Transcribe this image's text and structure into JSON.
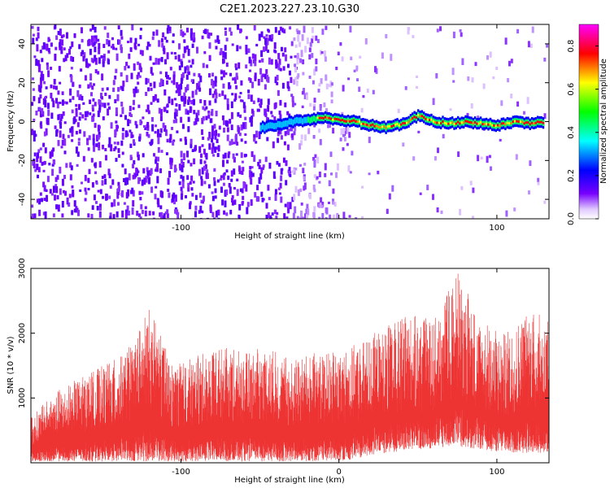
{
  "title": "C2E1.2023.227.23.10.G30",
  "chart_data": [
    {
      "type": "heatmap",
      "xlabel": "Height of straight line (km)",
      "ylabel": "Frequency (Hz)",
      "xlim": [
        -195,
        133
      ],
      "ylim": [
        -50,
        50
      ],
      "xticks": [
        -100,
        0,
        100
      ],
      "xtick_labels": [
        "-100",
        "",
        "100"
      ],
      "yticks": [
        -40,
        -20,
        0,
        20,
        40
      ],
      "ytick_labels": [
        "-40",
        "-20",
        "0",
        "20",
        "40"
      ],
      "grid": false,
      "colorbar": {
        "label": "Normalized spectral amplitude",
        "range": [
          0,
          0.9
        ],
        "ticks": [
          0.0,
          0.2,
          0.4,
          0.6,
          0.8
        ],
        "tick_labels": [
          "0.0",
          "0.2",
          "0.4",
          "0.6",
          "0.8"
        ],
        "colormap": [
          "#ffffff",
          "#7700ff",
          "#0000ff",
          "#00ffff",
          "#00ff00",
          "#ffff00",
          "#ff0000",
          "#ff00ff"
        ]
      },
      "ridge": {
        "description_free": true,
        "x": [
          -50,
          -40,
          -30,
          -20,
          -10,
          0,
          10,
          20,
          30,
          40,
          50,
          60,
          70,
          80,
          90,
          100,
          110,
          120,
          130
        ],
        "y": [
          -3,
          -2,
          0,
          1,
          2,
          1,
          0,
          -2,
          -3,
          -1,
          3,
          0,
          -1,
          0,
          -1,
          -2,
          0,
          -1,
          0
        ]
      }
    },
    {
      "type": "area",
      "xlabel": "Height of straight line (km)",
      "ylabel": "SNR (10 * v/v)",
      "xlim": [
        -195,
        133
      ],
      "ylim": [
        0,
        3000
      ],
      "xticks": [
        -100,
        0,
        100
      ],
      "xtick_labels": [
        "-100",
        "0",
        "100"
      ],
      "yticks": [
        1000,
        2000,
        3000
      ],
      "ytick_labels": [
        "1000",
        "2000",
        "3000"
      ],
      "grid": false,
      "color": "#ee3333",
      "x": [
        -195,
        -180,
        -165,
        -150,
        -135,
        -120,
        -105,
        -90,
        -75,
        -60,
        -45,
        -30,
        -15,
        0,
        15,
        30,
        45,
        60,
        75,
        90,
        105,
        120,
        133
      ],
      "y_low": [
        20,
        20,
        20,
        20,
        20,
        20,
        20,
        20,
        20,
        20,
        20,
        20,
        20,
        20,
        80,
        150,
        200,
        220,
        250,
        200,
        150,
        150,
        150
      ],
      "y_high": [
        700,
        1100,
        1300,
        1500,
        1700,
        2400,
        1500,
        1650,
        1800,
        1700,
        1800,
        1600,
        1700,
        1700,
        1900,
        2100,
        2300,
        2200,
        3000,
        2200,
        2000,
        2400,
        2200
      ]
    }
  ]
}
